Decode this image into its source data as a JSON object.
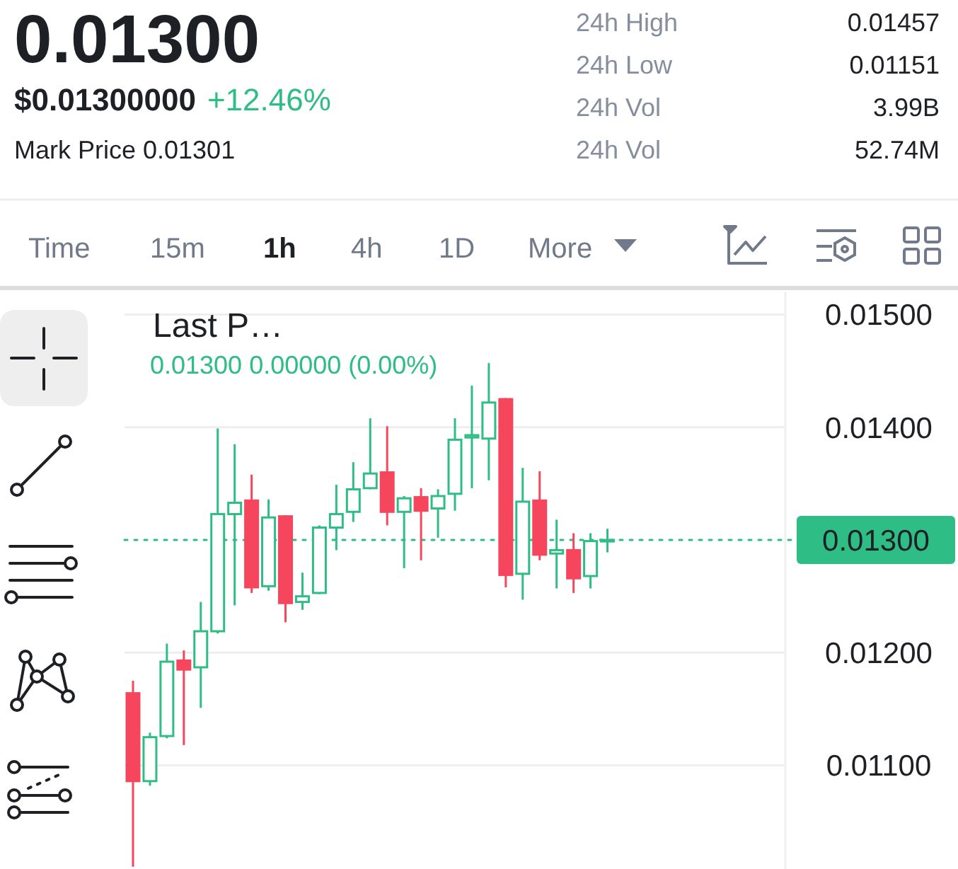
{
  "chart_data": {
    "type": "candlestick",
    "title": "0.01300",
    "annotations": [
      "$0.01300000",
      "+12.46%",
      "Mark Price 0.01301",
      "24h High",
      "0.01457",
      "24h Low",
      "0.01151",
      "24h Vol",
      "3.99B",
      "24h Vol",
      "52.74M",
      "Time",
      "15m",
      "1h",
      "4h",
      "1D",
      "More",
      "Last P…",
      "0.01300 0.00000 (0.00%)"
    ],
    "categories": [
      null,
      null,
      null,
      null,
      null,
      null,
      null,
      null,
      null,
      null,
      null,
      null,
      null,
      null,
      null,
      null,
      null,
      null,
      null,
      null,
      null,
      null,
      null,
      null,
      null,
      null,
      null,
      null,
      null,
      null,
      null,
      null,
      null,
      null,
      null,
      null,
      null,
      null,
      null
    ],
    "ohlc": [
      [
        0.01164,
        0.01175,
        0.0101,
        0.01086
      ],
      [
        0.01086,
        0.01129,
        0.01082,
        0.01125
      ],
      [
        0.01126,
        0.01208,
        0.01124,
        0.01192
      ],
      [
        0.01193,
        0.01202,
        0.01118,
        0.01185
      ],
      [
        0.01187,
        0.01245,
        0.01151,
        0.01219
      ],
      [
        0.01219,
        0.01399,
        0.01217,
        0.01323
      ],
      [
        0.01323,
        0.01385,
        0.01242,
        0.01333
      ],
      [
        0.01335,
        0.01358,
        0.01253,
        0.01258
      ],
      [
        0.01259,
        0.01336,
        0.01255,
        0.0132
      ],
      [
        0.01321,
        0.01322,
        0.01227,
        0.01244
      ],
      [
        0.01245,
        0.01271,
        0.01238,
        0.0125
      ],
      [
        0.01253,
        0.01313,
        0.01252,
        0.01311
      ],
      [
        0.01311,
        0.01349,
        0.01291,
        0.01323
      ],
      [
        0.01325,
        0.01369,
        0.01316,
        0.01345
      ],
      [
        0.01346,
        0.01408,
        0.01345,
        0.01359
      ],
      [
        0.0136,
        0.01401,
        0.01313,
        0.01325
      ],
      [
        0.01325,
        0.01339,
        0.01275,
        0.01337
      ],
      [
        0.01338,
        0.01346,
        0.01282,
        0.01326
      ],
      [
        0.01328,
        0.01345,
        0.01302,
        0.01339
      ],
      [
        0.01341,
        0.01408,
        0.01326,
        0.01389
      ],
      [
        0.01391,
        0.01437,
        0.01346,
        0.01393
      ],
      [
        0.0139,
        0.01457,
        0.01353,
        0.01422
      ],
      [
        0.01425,
        0.01426,
        0.01258,
        0.01269
      ],
      [
        0.0127,
        0.01364,
        0.01247,
        0.01334
      ],
      [
        0.01335,
        0.01361,
        0.01282,
        0.01287
      ],
      [
        0.01288,
        0.01318,
        0.01257,
        0.01291
      ],
      [
        0.01291,
        0.01306,
        0.01253,
        0.01266
      ],
      [
        0.01268,
        0.01306,
        0.01257,
        0.01299
      ],
      [
        0.01299,
        0.0131,
        0.01289,
        0.013
      ],
      null,
      null,
      null,
      null,
      null,
      null,
      null,
      null,
      null,
      null
    ],
    "colors": [
      "#f6465d",
      "#2ebd85",
      "#2ebd85",
      "#f6465d",
      "#2ebd85",
      "#2ebd85",
      "#2ebd85",
      "#f6465d",
      "#2ebd85",
      "#f6465d",
      "#2ebd85",
      "#2ebd85",
      "#2ebd85",
      "#2ebd85",
      "#2ebd85",
      "#f6465d",
      "#2ebd85",
      "#f6465d",
      "#2ebd85",
      "#2ebd85",
      "#2ebd85",
      "#2ebd85",
      "#f6465d",
      "#2ebd85",
      "#f6465d",
      "#2ebd85",
      "#f6465d",
      "#2ebd85",
      "#2ebd85",
      null,
      null,
      null,
      null,
      null,
      null,
      null,
      null,
      null,
      null
    ],
    "ylim": [
      0.01008,
      0.01523
    ],
    "yticks": [
      {
        "value": 0.011,
        "label": "0.01100"
      },
      {
        "value": 0.012,
        "label": "0.01200"
      },
      {
        "value": 0.014,
        "label": "0.01400"
      },
      {
        "value": 0.015,
        "label": "0.01500"
      }
    ],
    "grid": "y",
    "tick_labels": "y",
    "ref_lines": [
      {
        "axis": "y",
        "value": 0.013,
        "label": "0.01300",
        "color": "#2ebd85",
        "line_style": "dotted"
      }
    ]
  }
}
